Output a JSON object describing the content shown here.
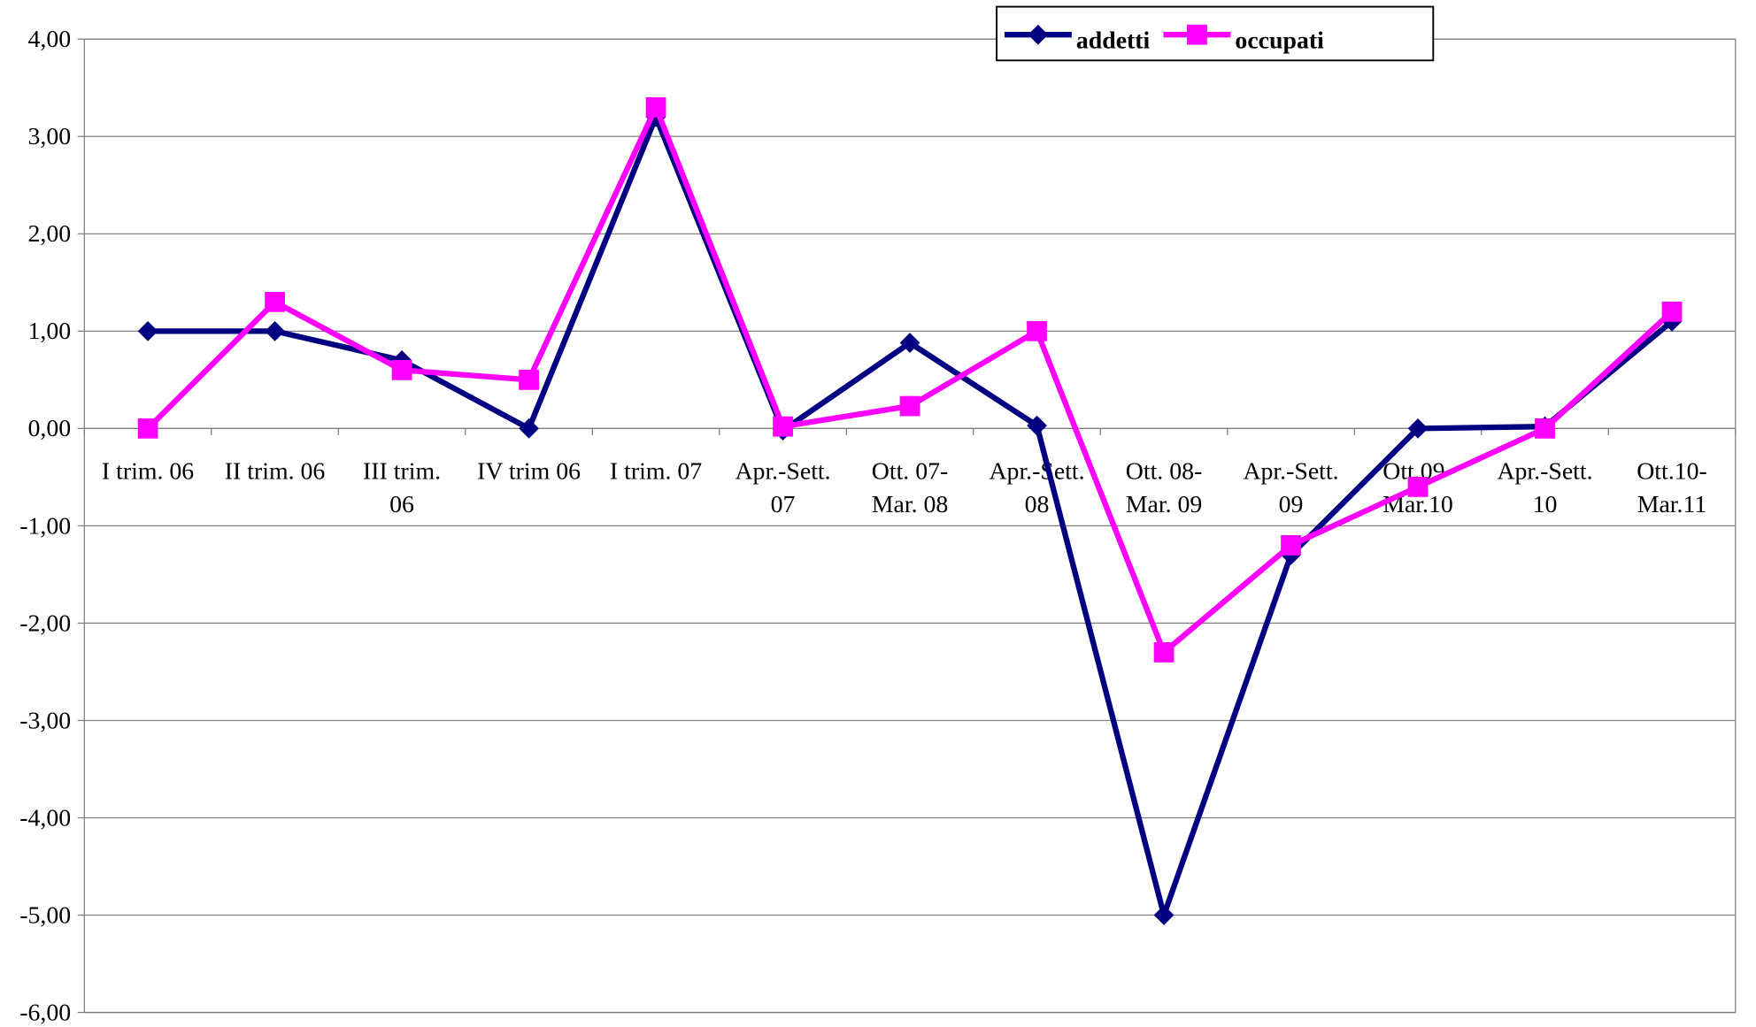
{
  "chart_data": {
    "type": "line",
    "categories": [
      "I trim. 06",
      "II trim. 06",
      "III trim. 06",
      "IV trim 06",
      "I trim. 07",
      "Apr.-Sett. 07",
      "Ott. 07-Mar. 08",
      "Apr.-Sett. 08",
      "Ott. 08-Mar. 09",
      "Apr.-Sett. 09",
      "Ott.09-Mar.10",
      "Apr.-Sett. 10",
      "Ott.10-Mar.11"
    ],
    "series": [
      {
        "name": "addetti",
        "color": "#000080",
        "marker": "diamond",
        "values": [
          1.0,
          1.0,
          0.7,
          0.0,
          3.2,
          -0.02,
          0.88,
          0.03,
          -5.0,
          -1.3,
          0.0,
          0.02,
          1.1
        ]
      },
      {
        "name": "occupati",
        "color": "#ff00ff",
        "marker": "square",
        "values": [
          0.0,
          1.3,
          0.6,
          0.5,
          3.3,
          0.02,
          0.23,
          1.0,
          -2.3,
          -1.2,
          -0.6,
          0.0,
          1.2
        ]
      }
    ],
    "ylim": [
      -6,
      4
    ],
    "yticks": [
      {
        "value": -6,
        "label": "-6,00"
      },
      {
        "value": -5,
        "label": "-5,00"
      },
      {
        "value": -4,
        "label": "-4,00"
      },
      {
        "value": -3,
        "label": "-3,00"
      },
      {
        "value": -2,
        "label": "-2,00"
      },
      {
        "value": -1,
        "label": "-1,00"
      },
      {
        "value": 0,
        "label": "0,00"
      },
      {
        "value": 1,
        "label": "1,00"
      },
      {
        "value": 2,
        "label": "2,00"
      },
      {
        "value": 3,
        "label": "3,00"
      },
      {
        "value": 4,
        "label": "4,00"
      }
    ],
    "grid": true,
    "legend": "top"
  }
}
